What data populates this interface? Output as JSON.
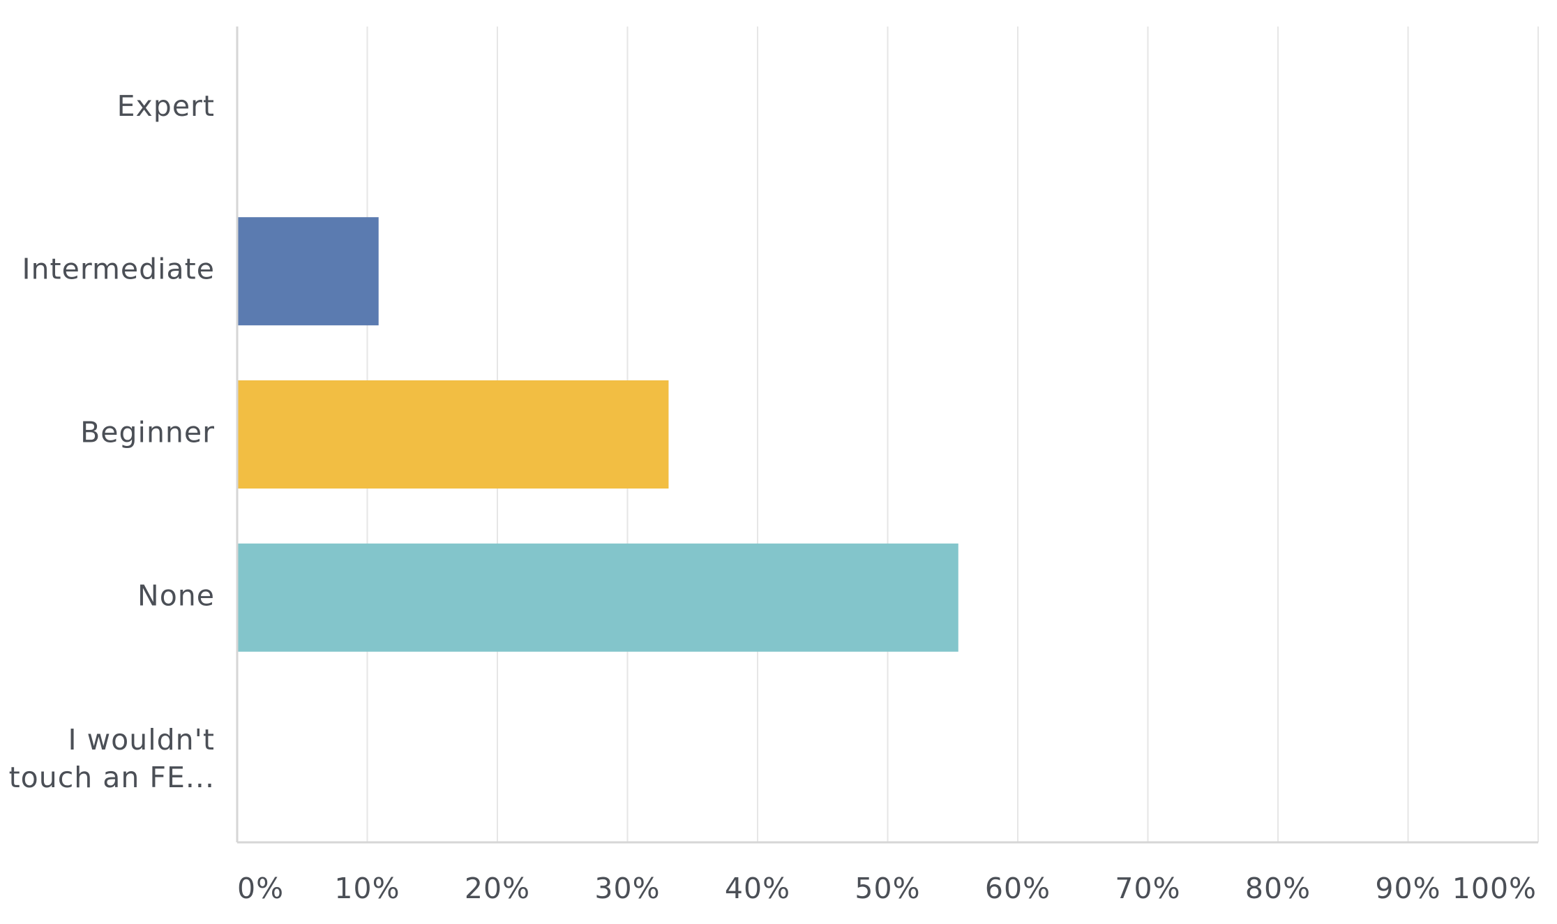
{
  "chart_data": {
    "type": "bar",
    "orientation": "horizontal",
    "categories": [
      {
        "lines": [
          "Expert"
        ]
      },
      {
        "lines": [
          "Intermediate"
        ]
      },
      {
        "lines": [
          "Beginner"
        ]
      },
      {
        "lines": [
          "None"
        ]
      },
      {
        "lines": [
          "I wouldn't",
          "touch an FE..."
        ]
      }
    ],
    "values": [
      0,
      10.87,
      33.16,
      55.43,
      0
    ],
    "colors": [
      "#5b7bb0",
      "#5b7bb0",
      "#f2be43",
      "#83c5cb",
      "#83c5cb"
    ],
    "x_ticks": [
      "0%",
      "10%",
      "20%",
      "30%",
      "40%",
      "50%",
      "60%",
      "70%",
      "80%",
      "90%",
      "100%"
    ],
    "xlim": [
      0,
      100
    ],
    "title": "",
    "xlabel": "",
    "ylabel": "",
    "grid": "vertical",
    "legend": "none"
  }
}
